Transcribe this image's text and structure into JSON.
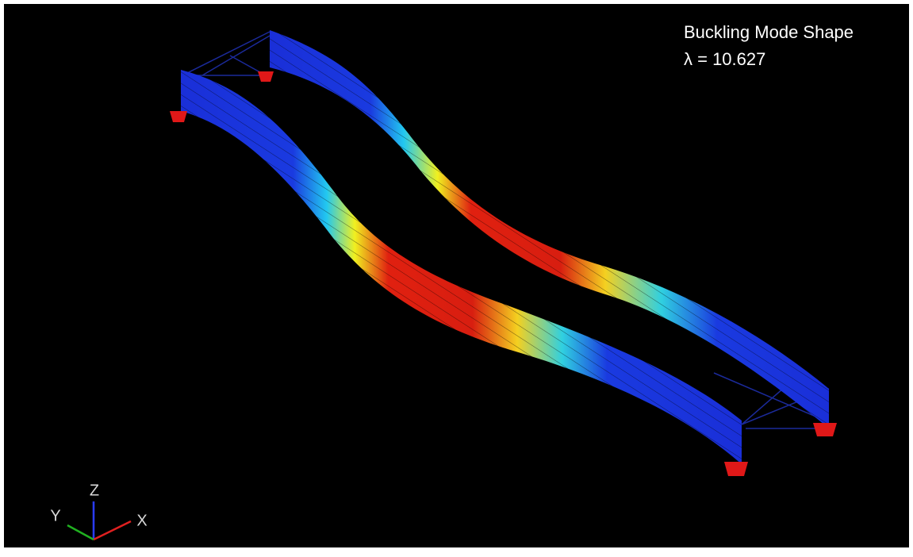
{
  "viewport": {
    "caption": {
      "title": "Buckling Mode Shape",
      "eigenvalue": "λ = 10.627"
    },
    "triad": {
      "z": "Z",
      "y": "Y",
      "x": "X"
    }
  }
}
